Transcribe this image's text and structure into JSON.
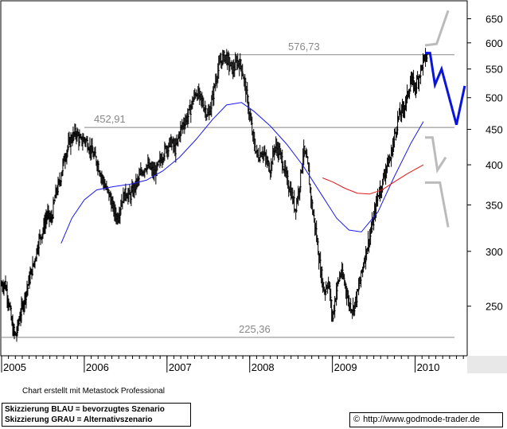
{
  "chart_data": {
    "type": "ohlc",
    "y_scale": "log",
    "ylim": [
      212,
      690
    ],
    "y_ticks": [
      250,
      300,
      350,
      400,
      450,
      500,
      550,
      600,
      650
    ],
    "x_ticks": [
      "2005",
      "2006",
      "2007",
      "2008",
      "2009",
      "2010"
    ],
    "grid": false,
    "levels": [
      {
        "label": "576,73",
        "value": 576.73
      },
      {
        "label": "452,91",
        "value": 452.91
      },
      {
        "label": "225,36",
        "value": 225.36
      }
    ],
    "price_series": [
      {
        "t": 2005.0,
        "v": 268
      },
      {
        "t": 2005.04,
        "v": 270
      },
      {
        "t": 2005.09,
        "v": 252
      },
      {
        "t": 2005.13,
        "v": 232
      },
      {
        "t": 2005.17,
        "v": 226
      },
      {
        "t": 2005.22,
        "v": 242
      },
      {
        "t": 2005.27,
        "v": 255
      },
      {
        "t": 2005.33,
        "v": 272
      },
      {
        "t": 2005.4,
        "v": 292
      },
      {
        "t": 2005.45,
        "v": 312
      },
      {
        "t": 2005.5,
        "v": 322
      },
      {
        "t": 2005.55,
        "v": 340
      },
      {
        "t": 2005.6,
        "v": 332
      },
      {
        "t": 2005.65,
        "v": 362
      },
      {
        "t": 2005.7,
        "v": 378
      },
      {
        "t": 2005.75,
        "v": 405
      },
      {
        "t": 2005.8,
        "v": 425
      },
      {
        "t": 2005.85,
        "v": 438
      },
      {
        "t": 2005.9,
        "v": 446
      },
      {
        "t": 2005.95,
        "v": 432
      },
      {
        "t": 2006.0,
        "v": 436
      },
      {
        "t": 2006.05,
        "v": 428
      },
      {
        "t": 2006.1,
        "v": 415
      },
      {
        "t": 2006.15,
        "v": 405
      },
      {
        "t": 2006.2,
        "v": 388
      },
      {
        "t": 2006.25,
        "v": 372
      },
      {
        "t": 2006.3,
        "v": 362
      },
      {
        "t": 2006.35,
        "v": 345
      },
      {
        "t": 2006.4,
        "v": 335
      },
      {
        "t": 2006.45,
        "v": 355
      },
      {
        "t": 2006.5,
        "v": 365
      },
      {
        "t": 2006.55,
        "v": 360
      },
      {
        "t": 2006.6,
        "v": 370
      },
      {
        "t": 2006.65,
        "v": 380
      },
      {
        "t": 2006.7,
        "v": 392
      },
      {
        "t": 2006.75,
        "v": 400
      },
      {
        "t": 2006.8,
        "v": 395
      },
      {
        "t": 2006.85,
        "v": 388
      },
      {
        "t": 2006.9,
        "v": 400
      },
      {
        "t": 2006.95,
        "v": 415
      },
      {
        "t": 2007.0,
        "v": 425
      },
      {
        "t": 2007.05,
        "v": 432
      },
      {
        "t": 2007.1,
        "v": 420
      },
      {
        "t": 2007.15,
        "v": 445
      },
      {
        "t": 2007.2,
        "v": 460
      },
      {
        "t": 2007.25,
        "v": 470
      },
      {
        "t": 2007.3,
        "v": 490
      },
      {
        "t": 2007.35,
        "v": 510
      },
      {
        "t": 2007.4,
        "v": 500
      },
      {
        "t": 2007.45,
        "v": 485
      },
      {
        "t": 2007.5,
        "v": 470
      },
      {
        "t": 2007.55,
        "v": 500
      },
      {
        "t": 2007.6,
        "v": 540
      },
      {
        "t": 2007.65,
        "v": 565
      },
      {
        "t": 2007.7,
        "v": 576
      },
      {
        "t": 2007.75,
        "v": 560
      },
      {
        "t": 2007.8,
        "v": 548
      },
      {
        "t": 2007.85,
        "v": 565
      },
      {
        "t": 2007.9,
        "v": 555
      },
      {
        "t": 2007.95,
        "v": 515
      },
      {
        "t": 2008.0,
        "v": 470
      },
      {
        "t": 2008.05,
        "v": 430
      },
      {
        "t": 2008.1,
        "v": 410
      },
      {
        "t": 2008.15,
        "v": 420
      },
      {
        "t": 2008.2,
        "v": 405
      },
      {
        "t": 2008.25,
        "v": 395
      },
      {
        "t": 2008.3,
        "v": 425
      },
      {
        "t": 2008.35,
        "v": 420
      },
      {
        "t": 2008.4,
        "v": 402
      },
      {
        "t": 2008.45,
        "v": 380
      },
      {
        "t": 2008.5,
        "v": 365
      },
      {
        "t": 2008.55,
        "v": 345
      },
      {
        "t": 2008.6,
        "v": 372
      },
      {
        "t": 2008.65,
        "v": 420
      },
      {
        "t": 2008.7,
        "v": 400
      },
      {
        "t": 2008.75,
        "v": 350
      },
      {
        "t": 2008.8,
        "v": 320
      },
      {
        "t": 2008.85,
        "v": 285
      },
      {
        "t": 2008.9,
        "v": 262
      },
      {
        "t": 2008.95,
        "v": 272
      },
      {
        "t": 2009.0,
        "v": 240
      },
      {
        "t": 2009.05,
        "v": 265
      },
      {
        "t": 2009.1,
        "v": 280
      },
      {
        "t": 2009.15,
        "v": 270
      },
      {
        "t": 2009.2,
        "v": 252
      },
      {
        "t": 2009.25,
        "v": 248
      },
      {
        "t": 2009.3,
        "v": 260
      },
      {
        "t": 2009.35,
        "v": 278
      },
      {
        "t": 2009.4,
        "v": 298
      },
      {
        "t": 2009.45,
        "v": 315
      },
      {
        "t": 2009.5,
        "v": 335
      },
      {
        "t": 2009.55,
        "v": 362
      },
      {
        "t": 2009.6,
        "v": 375
      },
      {
        "t": 2009.65,
        "v": 398
      },
      {
        "t": 2009.7,
        "v": 408
      },
      {
        "t": 2009.75,
        "v": 440
      },
      {
        "t": 2009.8,
        "v": 470
      },
      {
        "t": 2009.85,
        "v": 480
      },
      {
        "t": 2009.9,
        "v": 500
      },
      {
        "t": 2009.95,
        "v": 530
      },
      {
        "t": 2010.0,
        "v": 518
      },
      {
        "t": 2010.05,
        "v": 540
      },
      {
        "t": 2010.1,
        "v": 565
      },
      {
        "t": 2010.15,
        "v": 576
      }
    ],
    "ma_blue": [
      {
        "t": 2005.72,
        "v": 308
      },
      {
        "t": 2005.85,
        "v": 335
      },
      {
        "t": 2006.0,
        "v": 356
      },
      {
        "t": 2006.15,
        "v": 368
      },
      {
        "t": 2006.35,
        "v": 372
      },
      {
        "t": 2006.55,
        "v": 375
      },
      {
        "t": 2006.75,
        "v": 380
      },
      {
        "t": 2006.95,
        "v": 392
      },
      {
        "t": 2007.15,
        "v": 410
      },
      {
        "t": 2007.35,
        "v": 435
      },
      {
        "t": 2007.55,
        "v": 465
      },
      {
        "t": 2007.72,
        "v": 488
      },
      {
        "t": 2007.9,
        "v": 492
      },
      {
        "t": 2008.05,
        "v": 478
      },
      {
        "t": 2008.25,
        "v": 455
      },
      {
        "t": 2008.45,
        "v": 428
      },
      {
        "t": 2008.65,
        "v": 398
      },
      {
        "t": 2008.85,
        "v": 365
      },
      {
        "t": 2009.05,
        "v": 335
      },
      {
        "t": 2009.2,
        "v": 322
      },
      {
        "t": 2009.35,
        "v": 320
      },
      {
        "t": 2009.55,
        "v": 342
      },
      {
        "t": 2009.75,
        "v": 385
      },
      {
        "t": 2009.95,
        "v": 430
      },
      {
        "t": 2010.1,
        "v": 462
      }
    ],
    "ma_red": [
      {
        "t": 2008.88,
        "v": 383
      },
      {
        "t": 2009.0,
        "v": 378
      },
      {
        "t": 2009.15,
        "v": 370
      },
      {
        "t": 2009.3,
        "v": 364
      },
      {
        "t": 2009.45,
        "v": 363
      },
      {
        "t": 2009.6,
        "v": 368
      },
      {
        "t": 2009.75,
        "v": 378
      },
      {
        "t": 2009.9,
        "v": 388
      },
      {
        "t": 2010.1,
        "v": 400
      }
    ],
    "scenario_blue": [
      {
        "t": 2010.12,
        "v": 580
      },
      {
        "t": 2010.18,
        "v": 580
      },
      {
        "t": 2010.24,
        "v": 522
      },
      {
        "t": 2010.32,
        "v": 550
      },
      {
        "t": 2010.5,
        "v": 457
      },
      {
        "t": 2010.6,
        "v": 520
      }
    ],
    "scenario_grey": [
      [
        {
          "t": 2010.12,
          "v": 595
        },
        {
          "t": 2010.26,
          "v": 598
        },
        {
          "t": 2010.4,
          "v": 668
        }
      ],
      [
        {
          "t": 2010.12,
          "v": 438
        },
        {
          "t": 2010.21,
          "v": 438
        },
        {
          "t": 2010.27,
          "v": 393
        },
        {
          "t": 2010.37,
          "v": 410
        }
      ],
      [
        {
          "t": 2010.12,
          "v": 377
        },
        {
          "t": 2010.3,
          "v": 377
        },
        {
          "t": 2010.4,
          "v": 325
        }
      ]
    ]
  },
  "credit": "Chart erstellt mit Metastock Professional",
  "notes": {
    "line1": "Skizzierung BLAU = bevorzugtes Szenario",
    "line2": "Skizzierung GRAU = Alternativszenario"
  },
  "url": {
    "copyright": "©",
    "text": "http://www.godmode-trader.de"
  }
}
